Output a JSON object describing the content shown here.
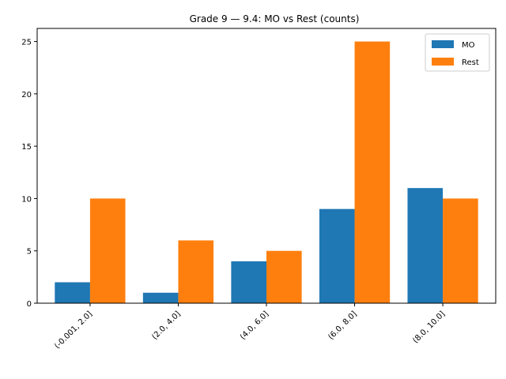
{
  "chart_data": {
    "type": "bar",
    "title": "Grade 9 — 9.4: MO vs Rest (counts)",
    "xlabel": "",
    "ylabel": "",
    "categories": [
      "(-0.001, 2.0]",
      "(2.0, 4.0]",
      "(4.0, 6.0]",
      "(6.0, 8.0]",
      "(8.0, 10.0]"
    ],
    "series": [
      {
        "name": "MO",
        "values": [
          2,
          1,
          4,
          9,
          11
        ],
        "color": "#1f77b4"
      },
      {
        "name": "Rest",
        "values": [
          10,
          6,
          5,
          25,
          10
        ],
        "color": "#ff7f0e"
      }
    ],
    "ylim": [
      0,
      26.25
    ],
    "yticks": [
      0,
      5,
      10,
      15,
      20,
      25
    ],
    "grid": false,
    "legend_position": "top-right"
  }
}
